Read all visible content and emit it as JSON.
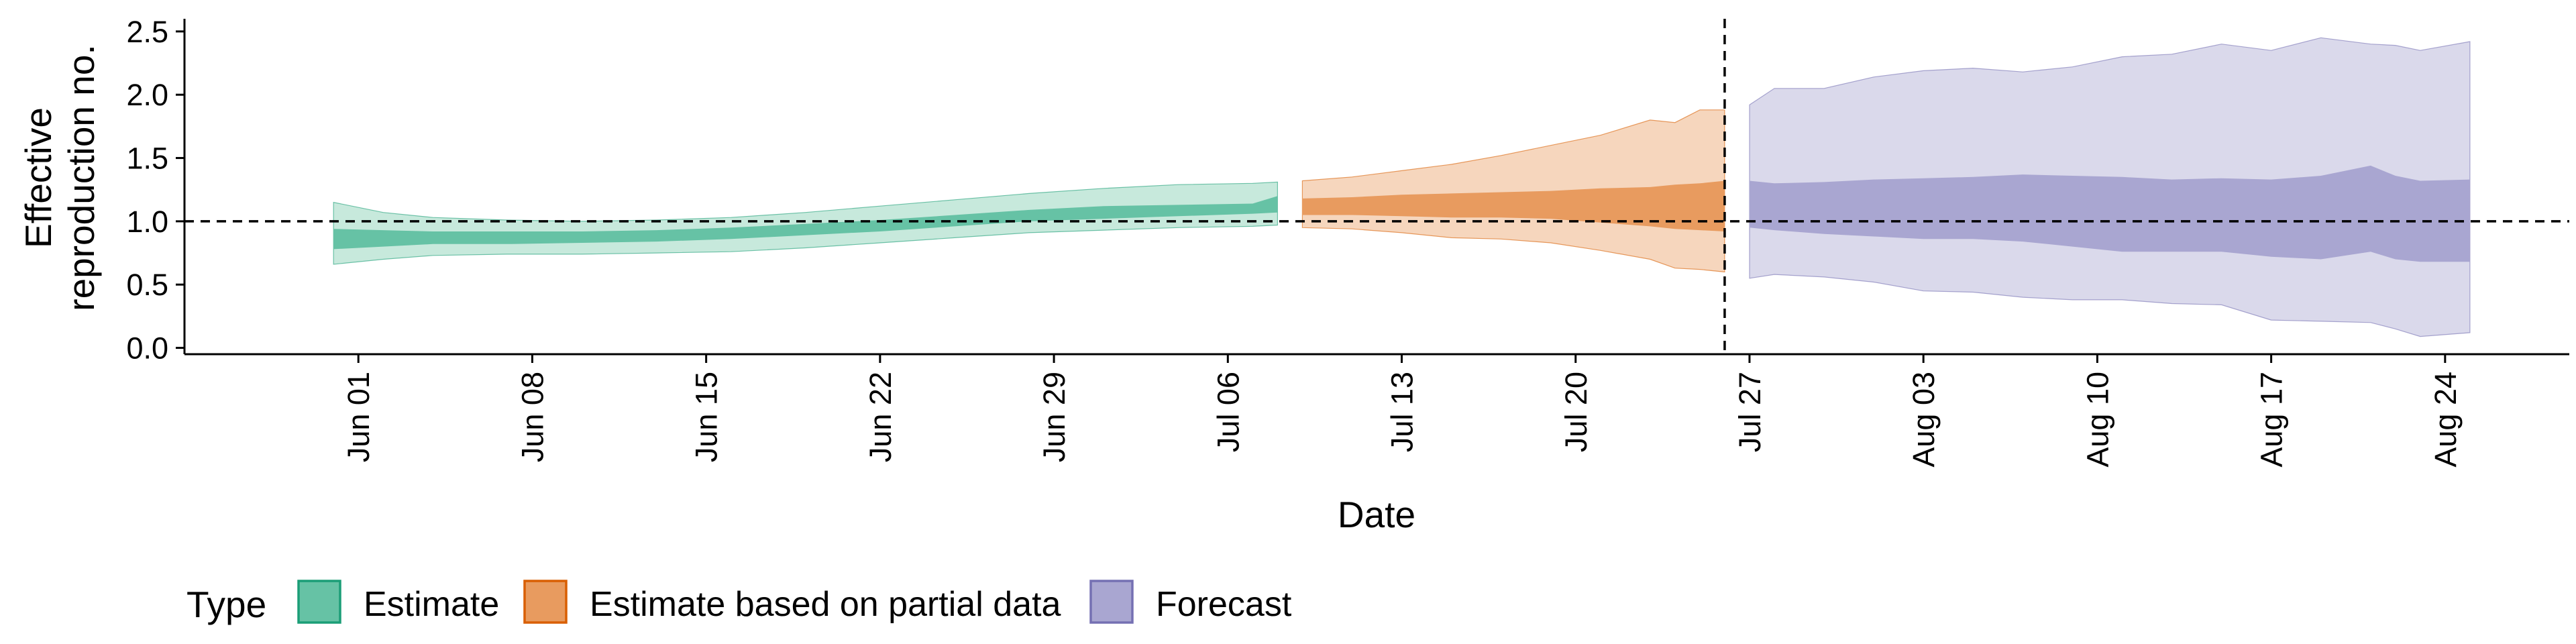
{
  "chart_data": {
    "type": "area",
    "xlabel": "Date",
    "ylabel": "Effective reproduction no.",
    "ylabel_lines": [
      "Effective",
      "reproduction no."
    ],
    "xlim": [
      "2020-05-25",
      "2020-08-29"
    ],
    "ylim": [
      -0.05,
      2.6
    ],
    "x_ticks": [
      "2020-06-01",
      "2020-06-08",
      "2020-06-15",
      "2020-06-22",
      "2020-06-29",
      "2020-07-06",
      "2020-07-13",
      "2020-07-20",
      "2020-07-27",
      "2020-08-03",
      "2020-08-10",
      "2020-08-17",
      "2020-08-24"
    ],
    "x_tick_labels": [
      "Jun 01",
      "Jun 08",
      "Jun 15",
      "Jun 22",
      "Jun 29",
      "Jul 06",
      "Jul 13",
      "Jul 20",
      "Jul 27",
      "Aug 03",
      "Aug 10",
      "Aug 17",
      "Aug 24"
    ],
    "y_ticks": [
      0.0,
      0.5,
      1.0,
      1.5,
      2.0,
      2.5
    ],
    "y_tick_labels": [
      "0.0",
      "0.5",
      "1.0",
      "1.5",
      "2.0",
      "2.5"
    ],
    "grid": false,
    "hline": 1.0,
    "vline": "2020-07-26",
    "legend": {
      "title": "Type",
      "placement": "bottom-left",
      "entries": [
        {
          "label": "Estimate",
          "fill": "#66c2a5",
          "stroke": "#1b9e77"
        },
        {
          "label": "Estimate based on partial data",
          "fill": "#e89b5f",
          "stroke": "#d95f02"
        },
        {
          "label": "Forecast",
          "fill": "#a9a6d1",
          "stroke": "#7570b3"
        }
      ]
    },
    "series": [
      {
        "name": "Estimate",
        "color_outer": "#c7e9dc",
        "color_inner": "#66c2a5",
        "points": [
          {
            "x": "2020-05-31",
            "lo90": 0.66,
            "lo50": 0.78,
            "hi50": 0.94,
            "hi90": 1.15
          },
          {
            "x": "2020-06-02",
            "lo90": 0.7,
            "lo50": 0.8,
            "hi50": 0.93,
            "hi90": 1.07
          },
          {
            "x": "2020-06-04",
            "lo90": 0.73,
            "lo50": 0.82,
            "hi50": 0.92,
            "hi90": 1.03
          },
          {
            "x": "2020-06-07",
            "lo90": 0.74,
            "lo50": 0.82,
            "hi50": 0.92,
            "hi90": 1.01
          },
          {
            "x": "2020-06-10",
            "lo90": 0.74,
            "lo50": 0.83,
            "hi50": 0.92,
            "hi90": 1.0
          },
          {
            "x": "2020-06-13",
            "lo90": 0.75,
            "lo50": 0.84,
            "hi50": 0.93,
            "hi90": 1.01
          },
          {
            "x": "2020-06-16",
            "lo90": 0.76,
            "lo50": 0.86,
            "hi50": 0.95,
            "hi90": 1.03
          },
          {
            "x": "2020-06-19",
            "lo90": 0.79,
            "lo50": 0.89,
            "hi50": 0.98,
            "hi90": 1.07
          },
          {
            "x": "2020-06-22",
            "lo90": 0.83,
            "lo50": 0.92,
            "hi50": 1.01,
            "hi90": 1.12
          },
          {
            "x": "2020-06-25",
            "lo90": 0.87,
            "lo50": 0.96,
            "hi50": 1.05,
            "hi90": 1.17
          },
          {
            "x": "2020-06-28",
            "lo90": 0.91,
            "lo50": 1.0,
            "hi50": 1.09,
            "hi90": 1.22
          },
          {
            "x": "2020-07-01",
            "lo90": 0.93,
            "lo50": 1.02,
            "hi50": 1.12,
            "hi90": 1.26
          },
          {
            "x": "2020-07-04",
            "lo90": 0.95,
            "lo50": 1.04,
            "hi50": 1.13,
            "hi90": 1.29
          },
          {
            "x": "2020-07-07",
            "lo90": 0.96,
            "lo50": 1.06,
            "hi50": 1.14,
            "hi90": 1.3
          },
          {
            "x": "2020-07-08",
            "lo90": 0.97,
            "lo50": 1.07,
            "hi50": 1.2,
            "hi90": 1.31
          }
        ]
      },
      {
        "name": "Estimate based on partial data",
        "color_outer": "#f6d6bd",
        "color_inner": "#e89b5f",
        "points": [
          {
            "x": "2020-07-09",
            "lo90": 0.95,
            "lo50": 1.05,
            "hi50": 1.18,
            "hi90": 1.32
          },
          {
            "x": "2020-07-11",
            "lo90": 0.94,
            "lo50": 1.05,
            "hi50": 1.19,
            "hi90": 1.35
          },
          {
            "x": "2020-07-13",
            "lo90": 0.91,
            "lo50": 1.04,
            "hi50": 1.21,
            "hi90": 1.4
          },
          {
            "x": "2020-07-15",
            "lo90": 0.87,
            "lo50": 1.03,
            "hi50": 1.22,
            "hi90": 1.45
          },
          {
            "x": "2020-07-17",
            "lo90": 0.86,
            "lo50": 1.03,
            "hi50": 1.23,
            "hi90": 1.52
          },
          {
            "x": "2020-07-19",
            "lo90": 0.83,
            "lo50": 1.02,
            "hi50": 1.24,
            "hi90": 1.6
          },
          {
            "x": "2020-07-21",
            "lo90": 0.77,
            "lo50": 0.99,
            "hi50": 1.26,
            "hi90": 1.68
          },
          {
            "x": "2020-07-23",
            "lo90": 0.7,
            "lo50": 0.96,
            "hi50": 1.27,
            "hi90": 1.8
          },
          {
            "x": "2020-07-24",
            "lo90": 0.63,
            "lo50": 0.94,
            "hi50": 1.29,
            "hi90": 1.78
          },
          {
            "x": "2020-07-25",
            "lo90": 0.62,
            "lo50": 0.93,
            "hi50": 1.3,
            "hi90": 1.88
          },
          {
            "x": "2020-07-26",
            "lo90": 0.6,
            "lo50": 0.92,
            "hi50": 1.32,
            "hi90": 1.88
          }
        ]
      },
      {
        "name": "Forecast",
        "color_outer": "#dad9eb",
        "color_inner": "#a9a6d1",
        "points": [
          {
            "x": "2020-07-27",
            "lo90": 0.55,
            "lo50": 0.95,
            "hi50": 1.32,
            "hi90": 1.92
          },
          {
            "x": "2020-07-28",
            "lo90": 0.58,
            "lo50": 0.93,
            "hi50": 1.3,
            "hi90": 2.05
          },
          {
            "x": "2020-07-30",
            "lo90": 0.56,
            "lo50": 0.9,
            "hi50": 1.31,
            "hi90": 2.05
          },
          {
            "x": "2020-08-01",
            "lo90": 0.52,
            "lo50": 0.88,
            "hi50": 1.33,
            "hi90": 2.14
          },
          {
            "x": "2020-08-03",
            "lo90": 0.45,
            "lo50": 0.86,
            "hi50": 1.34,
            "hi90": 2.19
          },
          {
            "x": "2020-08-05",
            "lo90": 0.44,
            "lo50": 0.86,
            "hi50": 1.35,
            "hi90": 2.21
          },
          {
            "x": "2020-08-07",
            "lo90": 0.4,
            "lo50": 0.84,
            "hi50": 1.37,
            "hi90": 2.18
          },
          {
            "x": "2020-08-09",
            "lo90": 0.38,
            "lo50": 0.8,
            "hi50": 1.36,
            "hi90": 2.22
          },
          {
            "x": "2020-08-11",
            "lo90": 0.38,
            "lo50": 0.76,
            "hi50": 1.35,
            "hi90": 2.3
          },
          {
            "x": "2020-08-13",
            "lo90": 0.35,
            "lo50": 0.76,
            "hi50": 1.33,
            "hi90": 2.32
          },
          {
            "x": "2020-08-15",
            "lo90": 0.34,
            "lo50": 0.76,
            "hi50": 1.34,
            "hi90": 2.4
          },
          {
            "x": "2020-08-17",
            "lo90": 0.22,
            "lo50": 0.72,
            "hi50": 1.33,
            "hi90": 2.35
          },
          {
            "x": "2020-08-19",
            "lo90": 0.21,
            "lo50": 0.7,
            "hi50": 1.36,
            "hi90": 2.45
          },
          {
            "x": "2020-08-21",
            "lo90": 0.2,
            "lo50": 0.76,
            "hi50": 1.44,
            "hi90": 2.4
          },
          {
            "x": "2020-08-22",
            "lo90": 0.15,
            "lo50": 0.7,
            "hi50": 1.36,
            "hi90": 2.39
          },
          {
            "x": "2020-08-23",
            "lo90": 0.09,
            "lo50": 0.68,
            "hi50": 1.32,
            "hi90": 2.35
          },
          {
            "x": "2020-08-25",
            "lo90": 0.12,
            "lo50": 0.68,
            "hi50": 1.33,
            "hi90": 2.42
          }
        ]
      }
    ]
  }
}
